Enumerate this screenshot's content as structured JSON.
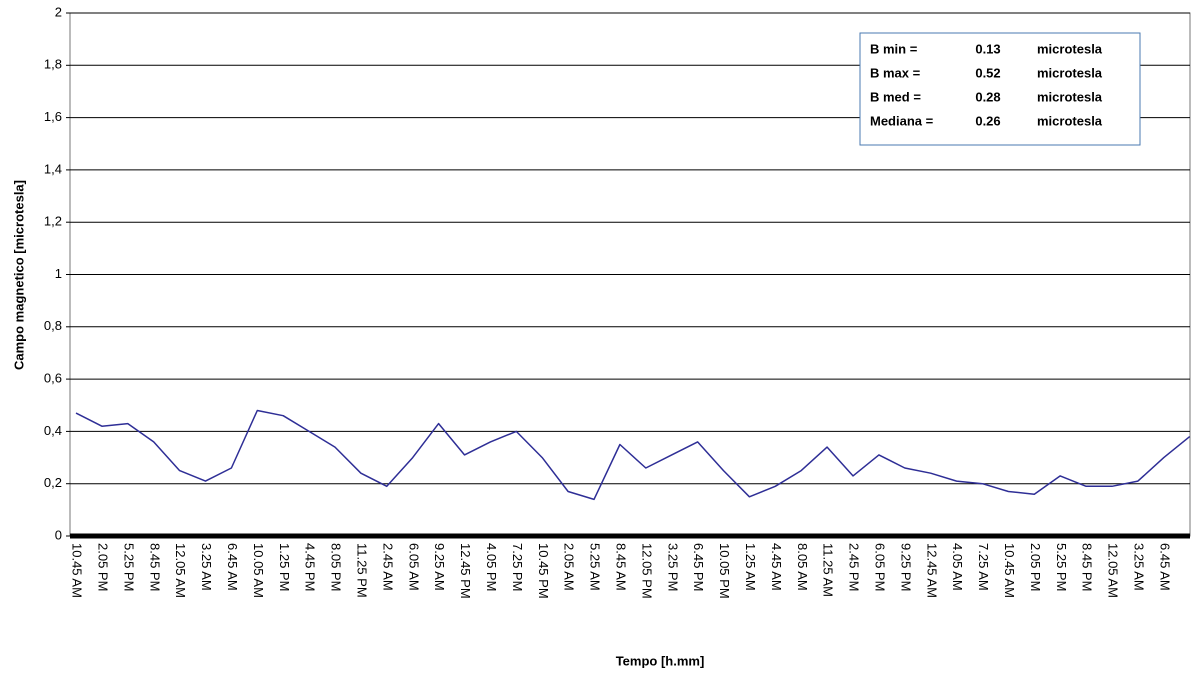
{
  "chart_data": {
    "type": "line",
    "y_label": "Campo magnetico [microtesla]",
    "x_label": "Tempo [h.mm]",
    "categories": [
      "10.45 AM",
      "2.05 PM",
      "5.25 PM",
      "8.45 PM",
      "12.05 AM",
      "3.25 AM",
      "6.45 AM",
      "10.05 AM",
      "1.25 PM",
      "4.45 PM",
      "8.05 PM",
      "11.25 PM",
      "2.45 AM",
      "6.05 AM",
      "9.25 AM",
      "12.45 PM",
      "4.05 PM",
      "7.25 PM",
      "10.45 PM",
      "2.05 AM",
      "5.25 AM",
      "8.45 AM",
      "12.05 PM",
      "3.25 PM",
      "6.45 PM",
      "10.05 PM",
      "1.25 AM",
      "4.45 AM",
      "8.05 AM",
      "11.25 AM",
      "2.45 PM",
      "6.05 PM",
      "9.25 PM",
      "12.45 AM",
      "4.05 AM",
      "7.25 AM",
      "10.45 AM",
      "2.05 PM",
      "5.25 PM",
      "8.45 PM",
      "12.05 AM",
      "3.25 AM",
      "6.45 AM",
      null
    ],
    "series": [
      {
        "color": "#2e2e96",
        "values": [
          0.47,
          0.42,
          0.43,
          0.36,
          0.25,
          0.21,
          0.26,
          0.48,
          0.46,
          0.4,
          0.34,
          0.24,
          0.19,
          0.3,
          0.43,
          0.31,
          0.36,
          0.4,
          0.3,
          0.17,
          0.14,
          0.35,
          0.26,
          0.31,
          0.36,
          0.25,
          0.15,
          0.19,
          0.25,
          0.34,
          0.23,
          0.31,
          0.26,
          0.24,
          0.21,
          0.2,
          0.17,
          0.16,
          0.23,
          0.19,
          0.19,
          0.21,
          0.3,
          0.38
        ]
      }
    ],
    "ylim": [
      0,
      2
    ],
    "yticks": [
      0,
      {
        "value": 0.2,
        "label": "0,2"
      },
      {
        "value": 0.4,
        "label": "0,4"
      },
      {
        "value": 0.6,
        "label": "0,6"
      },
      {
        "value": 0.8,
        "label": "0,8"
      },
      1,
      {
        "value": 1.2,
        "label": "1,2"
      },
      {
        "value": 1.4,
        "label": "1,4"
      },
      {
        "value": 1.6,
        "label": "1,6"
      },
      {
        "value": 1.8,
        "label": "1,8"
      },
      2
    ],
    "grid": true,
    "annotations": [
      {
        "label": "B min =",
        "value": 0.13,
        "unit": "microtesla"
      },
      {
        "label": "B max =",
        "value": 0.52,
        "unit": "microtesla"
      },
      {
        "label": "B med =",
        "value": 0.28,
        "unit": "microtesla"
      },
      {
        "label": "Mediana =",
        "value": 0.26,
        "unit": "microtesla"
      }
    ]
  }
}
